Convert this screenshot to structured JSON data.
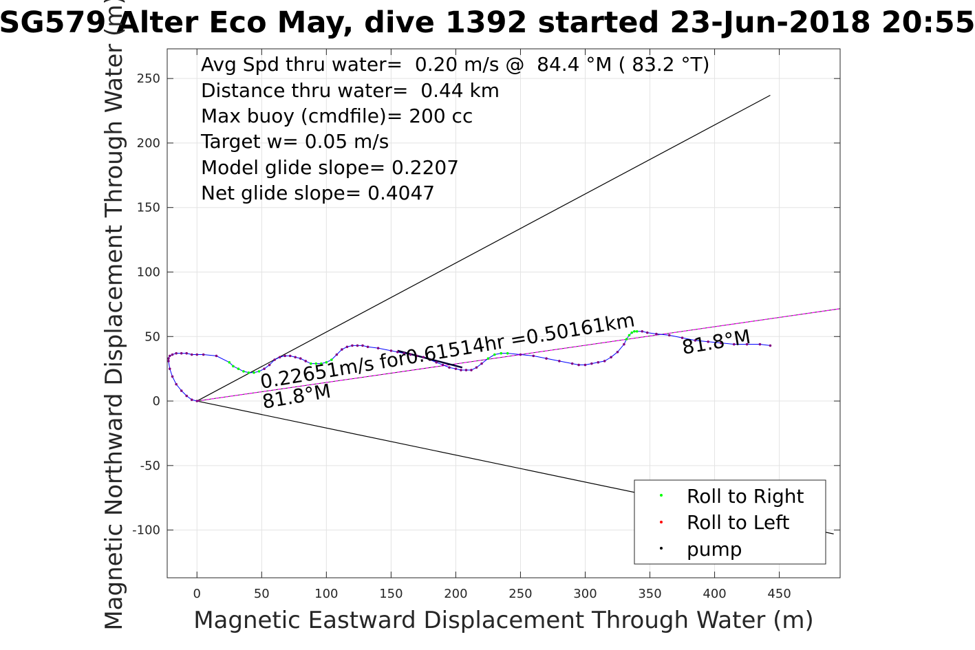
{
  "chart_data": {
    "type": "scatter",
    "title": "SG579 Alter Eco May, dive 1392 started 23-Jun-2018 20:55",
    "xlabel": "Magnetic Eastward Displacement Through Water (m)",
    "ylabel": "Magnetic Northward Displacement Through Water (m)",
    "xlim": [
      -23,
      497
    ],
    "ylim": [
      -137,
      273
    ],
    "xticks": [
      0,
      50,
      100,
      150,
      200,
      250,
      300,
      350,
      400,
      450
    ],
    "yticks": [
      -100,
      -50,
      0,
      50,
      100,
      150,
      200,
      250
    ],
    "grid": true,
    "annotations": [
      "Avg Spd thru water=  0.20 m/s @  84.4 °M ( 83.2 °T)",
      "Distance thru water=  0.44 km",
      "Max buoy (cmdfile)= 200 cc",
      "Target w= 0.05 m/s",
      "Model glide slope= 0.2207",
      "Net glide slope= 0.4047"
    ],
    "line_labels": {
      "speed": "0.22651m/s for0.61514hr =0.50161km",
      "heading_near": "81.8°M",
      "heading_far": "81.8°M"
    },
    "legend": {
      "location": "bottom-right",
      "entries": [
        {
          "label": "Roll to Right",
          "color": "#00ff00"
        },
        {
          "label": "Roll to Left",
          "color": "#ff0000"
        },
        {
          "label": "pump",
          "color": "#000000"
        }
      ]
    },
    "colors": {
      "track": "#0000ff",
      "heading_line": "#ff00ff",
      "cone": "#000000",
      "roll_right": "#00ff00",
      "roll_left": "#ff0000",
      "pump": "#000000",
      "points": "#800080"
    },
    "cone_lines": [
      {
        "x": [
          0,
          443
        ],
        "y": [
          0,
          237
        ]
      },
      {
        "x": [
          0,
          492
        ],
        "y": [
          0,
          -103
        ]
      }
    ],
    "heading_line": {
      "x": [
        0,
        500
      ],
      "y": [
        0,
        72
      ]
    },
    "track": {
      "x": [
        0,
        -4,
        -8,
        -12,
        -16,
        -19,
        -21,
        -22,
        -22,
        -21,
        -19,
        -16,
        -12,
        -8,
        -4,
        0,
        5,
        15,
        25,
        28,
        32,
        36,
        40,
        44,
        48,
        52,
        56,
        60,
        64,
        68,
        72,
        76,
        80,
        84,
        88,
        92,
        96,
        100,
        104,
        108,
        112,
        116,
        120,
        124,
        128,
        132,
        140,
        150,
        155,
        160,
        165,
        170,
        175,
        180,
        185,
        190,
        195,
        200,
        204,
        208,
        212,
        216,
        220,
        225,
        230,
        235,
        240,
        250,
        260,
        270,
        280,
        290,
        295,
        300,
        305,
        310,
        315,
        320,
        325,
        330,
        332,
        334,
        336,
        338,
        340,
        344,
        348,
        355,
        365,
        375,
        385,
        395,
        405,
        415,
        425,
        435,
        443
      ],
      "y": [
        0,
        1,
        4,
        8,
        13,
        19,
        25,
        31,
        33,
        35,
        36,
        37,
        37,
        37,
        36,
        36,
        36,
        35,
        30,
        27,
        25,
        23,
        22,
        22,
        23,
        25,
        28,
        32,
        34,
        35,
        35,
        34,
        33,
        31,
        29,
        29,
        29,
        30,
        32,
        36,
        40,
        42,
        43,
        43,
        43,
        42,
        41,
        39,
        38,
        37,
        36,
        35,
        34,
        32,
        30,
        28,
        26,
        25,
        24,
        24,
        24,
        26,
        29,
        33,
        36,
        37,
        37,
        36,
        35,
        33,
        31,
        29,
        28,
        28,
        29,
        30,
        31,
        34,
        38,
        44,
        48,
        51,
        53,
        54,
        54,
        54,
        53,
        52,
        51,
        49,
        47,
        46,
        45,
        44,
        44,
        44,
        43
      ]
    },
    "pump_segment": {
      "x": [
        155,
        205
      ],
      "y": [
        39,
        26
      ]
    }
  }
}
